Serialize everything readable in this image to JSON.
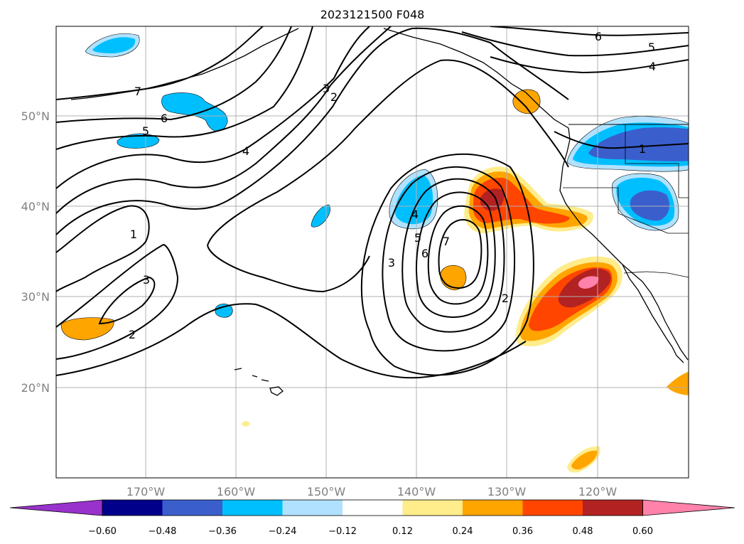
{
  "title": "2023121500 F048",
  "map": {
    "lat_labels": [
      "20°N",
      "30°N",
      "40°N",
      "50°N"
    ],
    "lon_labels": [
      "170°W",
      "160°W",
      "150°W",
      "140°W",
      "130°W",
      "120°W"
    ],
    "gridlines": true,
    "coastlines": true,
    "state_borders": true,
    "contour_color": "#000000",
    "contour_labels": [
      {
        "name": "contour-label-7-nw",
        "text": "7"
      },
      {
        "name": "contour-label-6-nw",
        "text": "6"
      },
      {
        "name": "contour-label-5-nw",
        "text": "5"
      },
      {
        "name": "contour-label-4-center",
        "text": "4"
      },
      {
        "name": "contour-label-3-north",
        "text": "3"
      },
      {
        "name": "contour-label-2-north",
        "text": "2"
      },
      {
        "name": "contour-label-1-west",
        "text": "1"
      },
      {
        "name": "contour-label-3-west",
        "text": "3"
      },
      {
        "name": "contour-label-2-west",
        "text": "2"
      },
      {
        "name": "contour-label-3-low",
        "text": "3"
      },
      {
        "name": "contour-label-4-low",
        "text": "4"
      },
      {
        "name": "contour-label-5-low",
        "text": "5"
      },
      {
        "name": "contour-label-6-low",
        "text": "6"
      },
      {
        "name": "contour-label-7-low",
        "text": "7"
      },
      {
        "name": "contour-label-2-low",
        "text": "2"
      },
      {
        "name": "contour-label-6-ne",
        "text": "6"
      },
      {
        "name": "contour-label-5-ne",
        "text": "5"
      },
      {
        "name": "contour-label-4-ne",
        "text": "4"
      },
      {
        "name": "contour-label-1-coast",
        "text": "1"
      }
    ]
  },
  "colorbar": {
    "labels": [
      "−0.60",
      "−0.48",
      "−0.36",
      "−0.24",
      "−0.12",
      "0.12",
      "0.24",
      "0.36",
      "0.48",
      "0.60"
    ],
    "colors": [
      "#9932cc",
      "#00008b",
      "#3a5fcd",
      "#00bfff",
      "#b0e2ff",
      "#ffffff",
      "#ffec8b",
      "#ffa500",
      "#ff4500",
      "#b22222",
      "#ff82ab"
    ],
    "extend": "both"
  }
}
